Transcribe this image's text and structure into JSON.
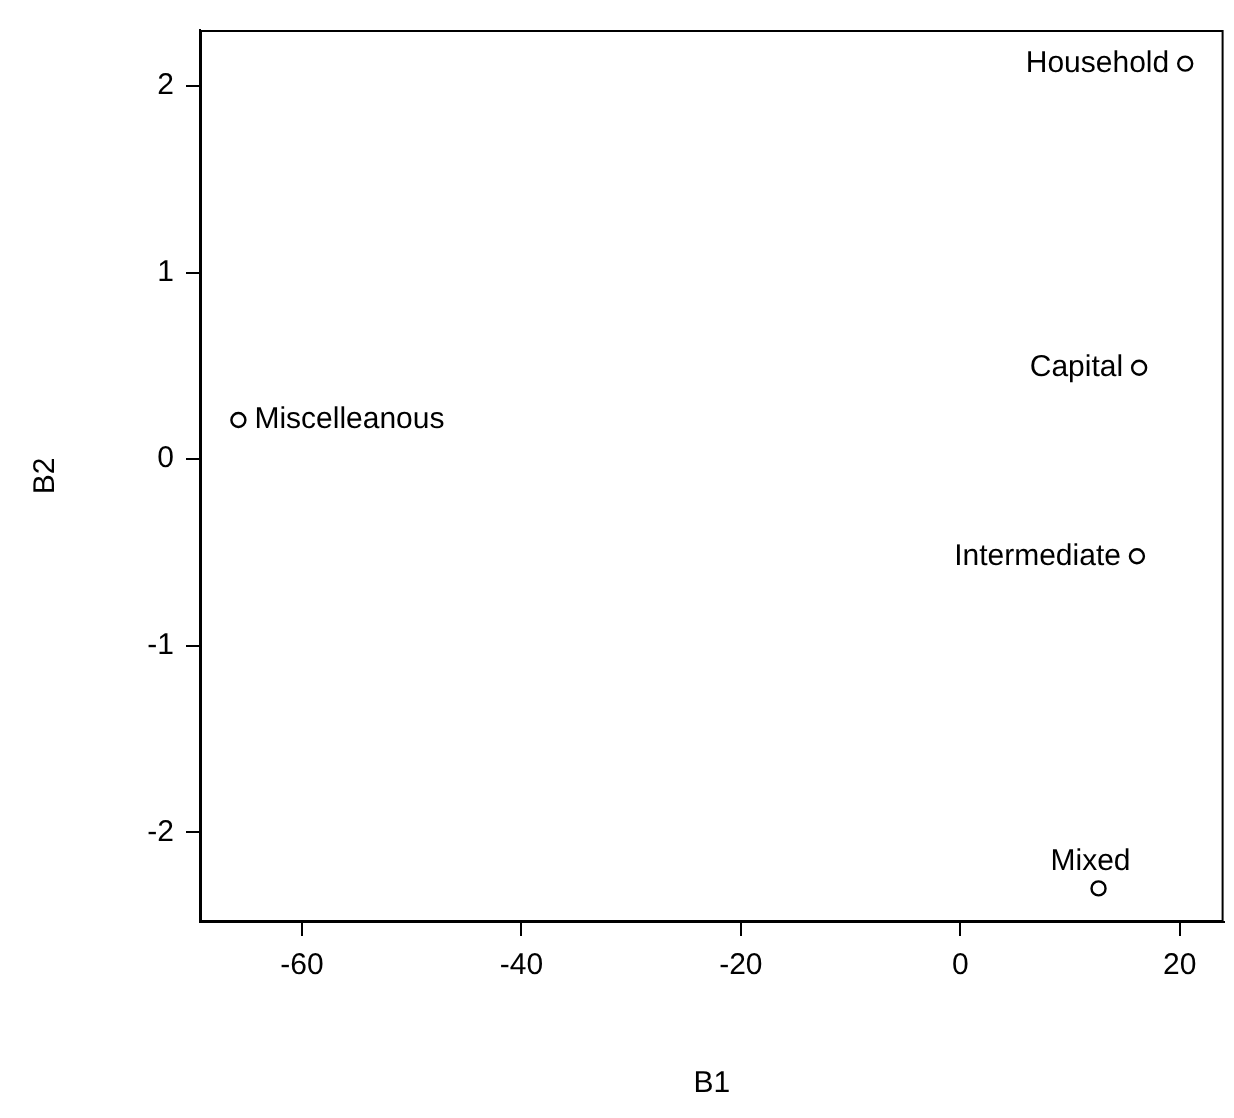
{
  "chart_data": {
    "type": "scatter",
    "xlabel": "B1",
    "ylabel": "B2",
    "x": [
      20.5,
      16.3,
      16.1,
      12.6,
      -65.8
    ],
    "values": [
      2.12,
      0.49,
      -0.52,
      -2.3,
      0.21
    ],
    "color": "#000000",
    "marker": "circle",
    "xlim": [
      -69.3,
      24.0
    ],
    "xticks": [
      -60,
      -40,
      -20,
      0,
      20
    ],
    "ylim": [
      -2.48,
      2.3
    ],
    "yticks": [
      -2,
      -1,
      0,
      1,
      2
    ],
    "grid": false,
    "legend": false,
    "annotations": [
      {
        "text": "Household",
        "x": 20.5,
        "y": 2.12
      },
      {
        "text": "Capital",
        "x": 16.3,
        "y": 0.49
      },
      {
        "text": "Intermediate",
        "x": 16.1,
        "y": -0.52
      },
      {
        "text": "Mixed",
        "x": 12.6,
        "y": -2.3
      },
      {
        "text": "Miscelleanous",
        "x": -65.8,
        "y": 0.21
      }
    ]
  }
}
